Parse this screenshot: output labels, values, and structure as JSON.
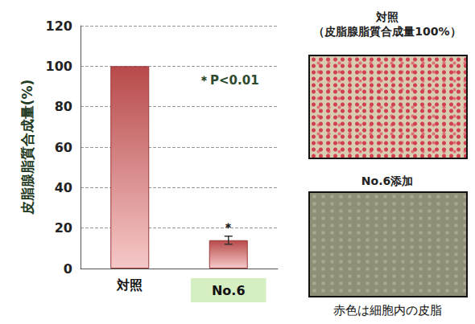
{
  "chart_data": {
    "type": "bar",
    "categories": [
      "対照",
      "No.6"
    ],
    "values": [
      100,
      14
    ],
    "errors": [
      null,
      2
    ],
    "significance": [
      null,
      "＊"
    ],
    "color": "#b84a4a",
    "ylabel": "皮脂腺脂質合成量(%)",
    "ylim": [
      0,
      120
    ],
    "yticks": [
      0,
      20,
      40,
      60,
      80,
      100,
      120
    ],
    "grid": true,
    "annotations": [
      "＊P<0.01"
    ]
  },
  "images": [
    {
      "title": "対照",
      "subtitle": "（皮脂腺脂質合成量100%）"
    },
    {
      "title": "No.6添加"
    }
  ],
  "caption": "赤色は細胞内の皮脂"
}
